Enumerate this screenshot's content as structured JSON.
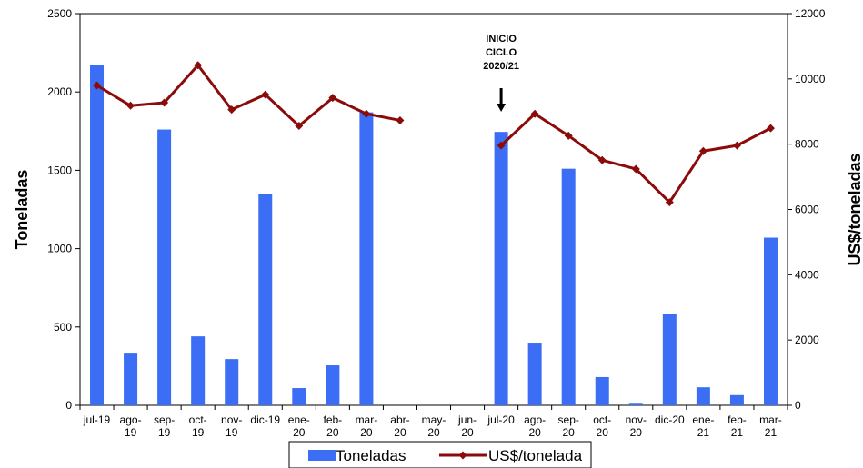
{
  "chart_data": {
    "type": "bar",
    "categories": [
      [
        "jul-19"
      ],
      [
        "ago-",
        "19"
      ],
      [
        "sep-",
        "19"
      ],
      [
        "oct-",
        "19"
      ],
      [
        "nov-",
        "19"
      ],
      [
        "dic-19"
      ],
      [
        "ene-",
        "20"
      ],
      [
        "feb-",
        "20"
      ],
      [
        "mar-",
        "20"
      ],
      [
        "abr-",
        "20"
      ],
      [
        "may-",
        "20"
      ],
      [
        "jun-",
        "20"
      ],
      [
        "jul-20"
      ],
      [
        "ago-",
        "20"
      ],
      [
        "sep-",
        "20"
      ],
      [
        "oct-",
        "20"
      ],
      [
        "nov-",
        "20"
      ],
      [
        "dic-20"
      ],
      [
        "ene-",
        "21"
      ],
      [
        "feb-",
        "21"
      ],
      [
        "mar-",
        "21"
      ]
    ],
    "series": [
      {
        "name": "Toneladas",
        "type": "bar",
        "axis": "left",
        "color": "#3b6ef5",
        "values": [
          2175,
          330,
          1760,
          440,
          295,
          1350,
          110,
          255,
          1870,
          0,
          0,
          0,
          1745,
          400,
          1510,
          180,
          10,
          580,
          115,
          65,
          1070
        ]
      },
      {
        "name": "US$/tonelada",
        "type": "line",
        "axis": "right",
        "color": "#8b0a0a",
        "values": [
          9800,
          9180,
          9270,
          10420,
          9060,
          9520,
          8560,
          9420,
          8930,
          8730,
          null,
          null,
          7960,
          8930,
          8260,
          7510,
          7240,
          6220,
          7790,
          7960,
          8490
        ]
      }
    ],
    "ylabel": "Toneladas",
    "y2label": "US$/toneladas",
    "ylim": [
      0,
      2500
    ],
    "y2lim": [
      0,
      12000
    ],
    "yticks": [
      "0",
      "500",
      "1000",
      "1500",
      "2000",
      "2500"
    ],
    "y2ticks": [
      "0",
      "2000",
      "4000",
      "6000",
      "8000",
      "10000",
      "12000"
    ],
    "annotation": {
      "lines": [
        "INICIO",
        "CICLO",
        "2020/21"
      ],
      "category_index": 12
    },
    "legend_position": "bottom",
    "grid": false
  }
}
